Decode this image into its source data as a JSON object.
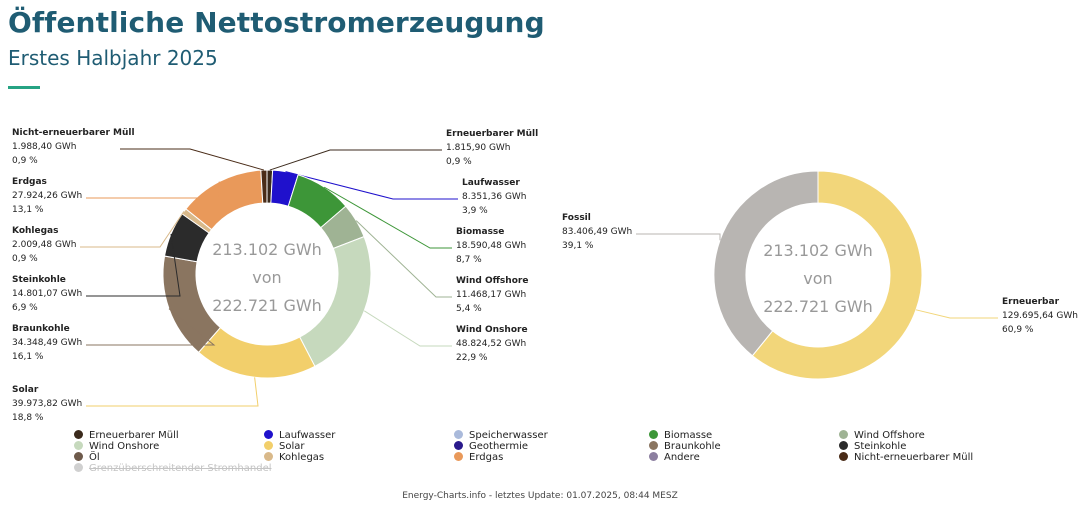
{
  "header": {
    "title": "Öffentliche Nettostromerzeugung",
    "subtitle": "Erstes Halbjahr 2025"
  },
  "chart_data": [
    {
      "type": "pie",
      "variant": "donut",
      "center_lines": [
        "213.102 GWh",
        "von",
        "222.721 GWh"
      ],
      "slices": [
        {
          "label": "Erneuerbarer Müll",
          "value": 1815.9,
          "value_text": "1.815,90 GWh",
          "percent_text": "0,9 %",
          "color": "#3b2a1c"
        },
        {
          "label": "Laufwasser",
          "value": 8351.36,
          "value_text": "8.351,36 GWh",
          "percent_text": "3,9 %",
          "color": "#1f11cc"
        },
        {
          "label": "Biomasse",
          "value": 18590.48,
          "value_text": "18.590,48 GWh",
          "percent_text": "8,7 %",
          "color": "#3d9638"
        },
        {
          "label": "Wind Offshore",
          "value": 11468.17,
          "value_text": "11.468,17 GWh",
          "percent_text": "5,4 %",
          "color": "#9fb394"
        },
        {
          "label": "Wind Onshore",
          "value": 48824.52,
          "value_text": "48.824,52 GWh",
          "percent_text": "22,9 %",
          "color": "#c6d9bd"
        },
        {
          "label": "Solar",
          "value": 39973.82,
          "value_text": "39.973,82 GWh",
          "percent_text": "18,8 %",
          "color": "#f2cf6b"
        },
        {
          "label": "Braunkohle",
          "value": 34348.49,
          "value_text": "34.348,49 GWh",
          "percent_text": "16,1 %",
          "color": "#8a7560"
        },
        {
          "label": "Steinkohle",
          "value": 14801.07,
          "value_text": "14.801,07 GWh",
          "percent_text": "6,9 %",
          "color": "#2b2b2b"
        },
        {
          "label": "Kohlegas",
          "value": 2009.48,
          "value_text": "2.009,48 GWh",
          "percent_text": "0,9 %",
          "color": "#d9b98a"
        },
        {
          "label": "Erdgas",
          "value": 27924.26,
          "value_text": "27.924,26 GWh",
          "percent_text": "13,1 %",
          "color": "#e9995a"
        },
        {
          "label": "Nicht-erneuerbarer Müll",
          "value": 1988.4,
          "value_text": "1.988,40 GWh",
          "percent_text": "0,9 %",
          "color": "#4a2c18"
        }
      ]
    },
    {
      "type": "pie",
      "variant": "donut",
      "center_lines": [
        "213.102 GWh",
        "von",
        "222.721 GWh"
      ],
      "slices": [
        {
          "label": "Erneuerbar",
          "value": 129695.64,
          "value_text": "129.695,64 GWh",
          "percent_text": "60,9 %",
          "color": "#f2d67a"
        },
        {
          "label": "Fossil",
          "value": 83406.49,
          "value_text": "83.406,49 GWh",
          "percent_text": "39,1 %",
          "color": "#b8b5b2"
        }
      ]
    }
  ],
  "legend": [
    {
      "label": "Erneuerbarer Müll",
      "color": "#3b2a1c",
      "active": true
    },
    {
      "label": "Laufwasser",
      "color": "#1f11cc",
      "active": true
    },
    {
      "label": "Speicherwasser",
      "color": "#aabadb",
      "active": true
    },
    {
      "label": "Biomasse",
      "color": "#3d9638",
      "active": true
    },
    {
      "label": "Wind Offshore",
      "color": "#9fb394",
      "active": true
    },
    {
      "label": "Wind Onshore",
      "color": "#c6d9bd",
      "active": true
    },
    {
      "label": "Solar",
      "color": "#f2cf6b",
      "active": true
    },
    {
      "label": "Geothermie",
      "color": "#2a1a8c",
      "active": true
    },
    {
      "label": "Braunkohle",
      "color": "#8a7560",
      "active": true
    },
    {
      "label": "Steinkohle",
      "color": "#2b2b2b",
      "active": true
    },
    {
      "label": "Öl",
      "color": "#6e5a4b",
      "active": true
    },
    {
      "label": "Kohlegas",
      "color": "#d9b98a",
      "active": true
    },
    {
      "label": "Erdgas",
      "color": "#e9995a",
      "active": true
    },
    {
      "label": "Andere",
      "color": "#8c7fa0",
      "active": true
    },
    {
      "label": "Nicht-erneuerbarer Müll",
      "color": "#4a2c18",
      "active": true
    },
    {
      "label": "Grenzüberschreitender Stromhandel",
      "color": "#d0d0d0",
      "active": false
    }
  ],
  "footer": {
    "text": "Energy-Charts.info - letztes Update: 01.07.2025, 08:44 MESZ"
  }
}
